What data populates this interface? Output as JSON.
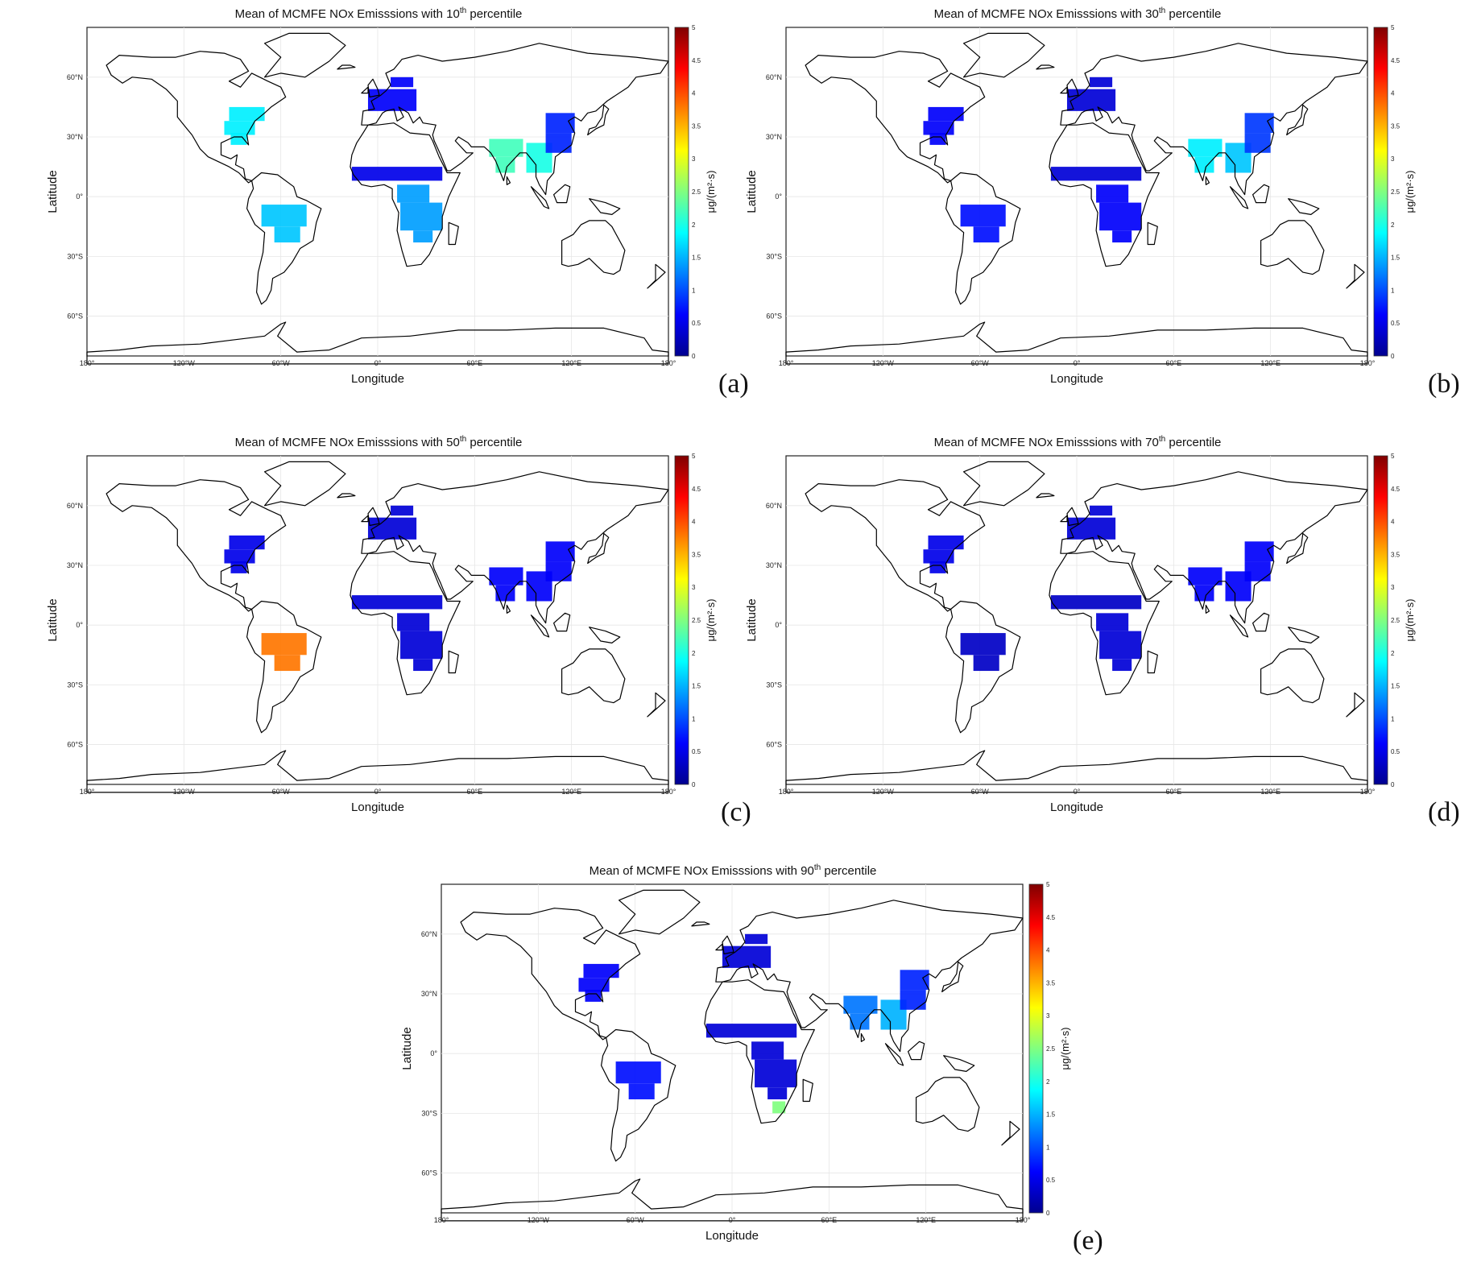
{
  "colormap": [
    "#00008f",
    "#0000ff",
    "#0080ff",
    "#00ffff",
    "#80ff80",
    "#ffff00",
    "#ff8000",
    "#ff0000",
    "#800000"
  ],
  "map_style": {
    "land_outline": "#000000",
    "background": "#ffffff",
    "grid": "#e6e6e6"
  },
  "shared_axes": {
    "xlabel": "Longitude",
    "ylabel": "Latitude",
    "colorbar_label": "μg/(m²·s)",
    "x_ticks": [
      "180°",
      "120°W",
      "60°W",
      "0°",
      "60°E",
      "120°E",
      "180°"
    ],
    "y_ticks": [
      "60°N",
      "30°N",
      "0°",
      "30°S",
      "60°S"
    ],
    "colorbar_ticks": [
      "5",
      "4.5",
      "4",
      "3.5",
      "3",
      "2.5",
      "2",
      "1.5",
      "1",
      "0.5",
      "0"
    ]
  },
  "chart_data": [
    {
      "type": "heatmap",
      "panel_label": "(a)",
      "title_prefix": "Mean of MCMFE NOx Emisssions with 10",
      "title_sup": "th",
      "title_suffix": " percentile",
      "xlim": [
        -180,
        180
      ],
      "ylim": [
        -80,
        85
      ],
      "colorbar_range": [
        0,
        5
      ],
      "regions": [
        {
          "name": "Eastern United States",
          "lon": -85,
          "lat": 38,
          "level": 1.8
        },
        {
          "name": "Western Europe",
          "lon": 10,
          "lat": 50,
          "level": 0.6
        },
        {
          "name": "Sahel",
          "lon": 5,
          "lat": 11,
          "level": 0.5
        },
        {
          "name": "South America",
          "lon": -60,
          "lat": -12,
          "level": 1.6
        },
        {
          "name": "Southern Africa",
          "lon": 25,
          "lat": -12,
          "level": 1.4
        },
        {
          "name": "India",
          "lon": 80,
          "lat": 22,
          "level": 2.2
        },
        {
          "name": "Southeast Asia",
          "lon": 100,
          "lat": 18,
          "level": 2.0
        },
        {
          "name": "Eastern China",
          "lon": 115,
          "lat": 32,
          "level": 0.8
        }
      ]
    },
    {
      "type": "heatmap",
      "panel_label": "(b)",
      "title_prefix": "Mean of MCMFE NOx Emisssions with 30",
      "title_sup": "th",
      "title_suffix": " percentile",
      "xlim": [
        -180,
        180
      ],
      "ylim": [
        -80,
        85
      ],
      "colorbar_range": [
        0,
        5
      ],
      "regions": [
        {
          "name": "Eastern United States",
          "lon": -85,
          "lat": 38,
          "level": 0.6
        },
        {
          "name": "Western Europe",
          "lon": 10,
          "lat": 50,
          "level": 0.4
        },
        {
          "name": "Sahel",
          "lon": 5,
          "lat": 11,
          "level": 0.4
        },
        {
          "name": "South America",
          "lon": -60,
          "lat": -12,
          "level": 0.7
        },
        {
          "name": "Southern Africa",
          "lon": 25,
          "lat": -12,
          "level": 0.6
        },
        {
          "name": "India",
          "lon": 80,
          "lat": 22,
          "level": 1.8
        },
        {
          "name": "Southeast Asia",
          "lon": 100,
          "lat": 18,
          "level": 1.6
        },
        {
          "name": "Eastern China",
          "lon": 115,
          "lat": 32,
          "level": 0.9
        }
      ]
    },
    {
      "type": "heatmap",
      "panel_label": "(c)",
      "title_prefix": "Mean of MCMFE NOx Emisssions with 50",
      "title_sup": "th",
      "title_suffix": " percentile",
      "xlim": [
        -180,
        180
      ],
      "ylim": [
        -80,
        85
      ],
      "colorbar_range": [
        0,
        5
      ],
      "regions": [
        {
          "name": "Eastern United States",
          "lon": -85,
          "lat": 38,
          "level": 0.5
        },
        {
          "name": "Western Europe",
          "lon": 10,
          "lat": 50,
          "level": 0.4
        },
        {
          "name": "Sahel",
          "lon": 5,
          "lat": 11,
          "level": 0.4
        },
        {
          "name": "South America",
          "lon": -60,
          "lat": -12,
          "level": 3.8
        },
        {
          "name": "Southern Africa",
          "lon": 25,
          "lat": -12,
          "level": 0.4
        },
        {
          "name": "India",
          "lon": 80,
          "lat": 22,
          "level": 0.6
        },
        {
          "name": "Southeast Asia",
          "lon": 100,
          "lat": 18,
          "level": 0.6
        },
        {
          "name": "Eastern China",
          "lon": 115,
          "lat": 32,
          "level": 0.6
        }
      ]
    },
    {
      "type": "heatmap",
      "panel_label": "(d)",
      "title_prefix": "Mean of MCMFE NOx Emisssions with 70",
      "title_sup": "th",
      "title_suffix": " percentile",
      "xlim": [
        -180,
        180
      ],
      "ylim": [
        -80,
        85
      ],
      "colorbar_range": [
        0,
        5
      ],
      "regions": [
        {
          "name": "Eastern United States",
          "lon": -85,
          "lat": 38,
          "level": 0.5
        },
        {
          "name": "Western Europe",
          "lon": 10,
          "lat": 50,
          "level": 0.4
        },
        {
          "name": "Sahel",
          "lon": 5,
          "lat": 11,
          "level": 0.3
        },
        {
          "name": "South America",
          "lon": -60,
          "lat": -12,
          "level": 0.3
        },
        {
          "name": "Southern Africa",
          "lon": 25,
          "lat": -12,
          "level": 0.4
        },
        {
          "name": "India",
          "lon": 80,
          "lat": 22,
          "level": 0.6
        },
        {
          "name": "Southeast Asia",
          "lon": 100,
          "lat": 18,
          "level": 0.6
        },
        {
          "name": "Eastern China",
          "lon": 115,
          "lat": 32,
          "level": 0.6
        }
      ]
    },
    {
      "type": "heatmap",
      "panel_label": "(e)",
      "title_prefix": "Mean of MCMFE NOx Emisssions with 90",
      "title_sup": "th",
      "title_suffix": " percentile",
      "xlim": [
        -180,
        180
      ],
      "ylim": [
        -80,
        85
      ],
      "colorbar_range": [
        0,
        5
      ],
      "regions": [
        {
          "name": "Eastern United States",
          "lon": -85,
          "lat": 38,
          "level": 0.6
        },
        {
          "name": "Western Europe",
          "lon": 10,
          "lat": 50,
          "level": 0.4
        },
        {
          "name": "Sahel",
          "lon": 5,
          "lat": 11,
          "level": 0.4
        },
        {
          "name": "South America",
          "lon": -60,
          "lat": -12,
          "level": 0.7
        },
        {
          "name": "Southern Africa",
          "lon": 25,
          "lat": -12,
          "level": 0.4
        },
        {
          "name": "South Africa",
          "lon": 28,
          "lat": -27,
          "level": 2.5
        },
        {
          "name": "India",
          "lon": 80,
          "lat": 22,
          "level": 1.2
        },
        {
          "name": "Southeast Asia",
          "lon": 100,
          "lat": 18,
          "level": 1.5
        },
        {
          "name": "Eastern China",
          "lon": 115,
          "lat": 32,
          "level": 0.8
        }
      ]
    }
  ]
}
